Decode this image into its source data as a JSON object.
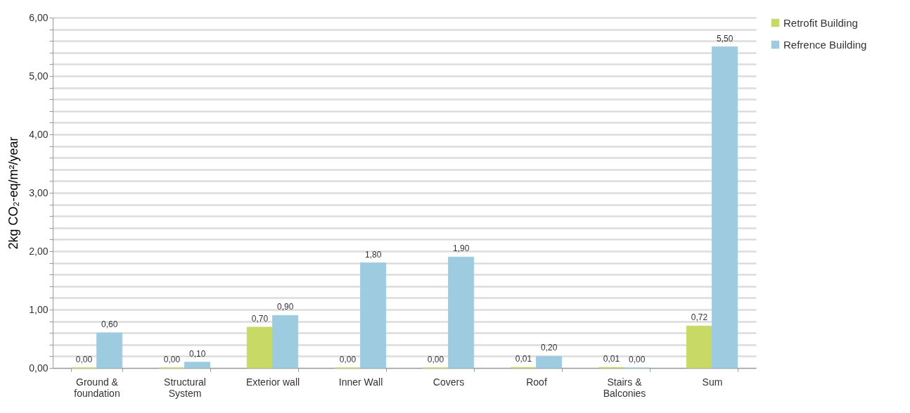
{
  "chart_data": {
    "type": "bar",
    "ylabel": "2kg CO₂-eq/m²/year",
    "categories": [
      "Ground & foundation",
      "Structural System",
      "Exterior wall",
      "Inner Wall",
      "Covers",
      "Roof",
      "Stairs & Balconies",
      "Sum"
    ],
    "series": [
      {
        "name": "Retrofit Building",
        "color": "#c8d966",
        "values": [
          0,
          0,
          0.7,
          0,
          0,
          0.01,
          0.01,
          0.72
        ],
        "value_labels": [
          "0,00",
          "0,00",
          "0,70",
          "0,00",
          "0,00",
          "0,01",
          "0,01",
          "0,72"
        ]
      },
      {
        "name": "Refrence Building",
        "color": "#9dcbe0",
        "values": [
          0.6,
          0.1,
          0.9,
          1.8,
          1.9,
          0.2,
          0,
          5.5
        ],
        "value_labels": [
          "0,60",
          "0,10",
          "0,90",
          "1,80",
          "1,90",
          "0,20",
          "0,00",
          "5,50"
        ]
      }
    ],
    "ylim": [
      0,
      6
    ],
    "yticks": [
      {
        "value": 0,
        "label": "0,00"
      },
      {
        "value": 0.2,
        "label": null
      },
      {
        "value": 0.4,
        "label": null
      },
      {
        "value": 0.6,
        "label": null
      },
      {
        "value": 0.8,
        "label": null
      },
      {
        "value": 1,
        "label": "1,00"
      },
      {
        "value": 1.2,
        "label": null
      },
      {
        "value": 1.4,
        "label": null
      },
      {
        "value": 1.6,
        "label": null
      },
      {
        "value": 1.8,
        "label": null
      },
      {
        "value": 2,
        "label": "2,00"
      },
      {
        "value": 2.2,
        "label": null
      },
      {
        "value": 2.4,
        "label": null
      },
      {
        "value": 2.6,
        "label": null
      },
      {
        "value": 2.8,
        "label": null
      },
      {
        "value": 3,
        "label": "3,00"
      },
      {
        "value": 3.2,
        "label": null
      },
      {
        "value": 3.4,
        "label": null
      },
      {
        "value": 3.6,
        "label": null
      },
      {
        "value": 3.8,
        "label": null
      },
      {
        "value": 4,
        "label": "4,00"
      },
      {
        "value": 4.2,
        "label": null
      },
      {
        "value": 4.4,
        "label": null
      },
      {
        "value": 4.6,
        "label": null
      },
      {
        "value": 4.8,
        "label": null
      },
      {
        "value": 5,
        "label": "5,00"
      },
      {
        "value": 5.2,
        "label": null
      },
      {
        "value": 5.4,
        "label": null
      },
      {
        "value": 5.6,
        "label": null
      },
      {
        "value": 5.8,
        "label": null
      },
      {
        "value": 6,
        "label": "6,00"
      }
    ],
    "grid": "y",
    "legend": "right"
  }
}
